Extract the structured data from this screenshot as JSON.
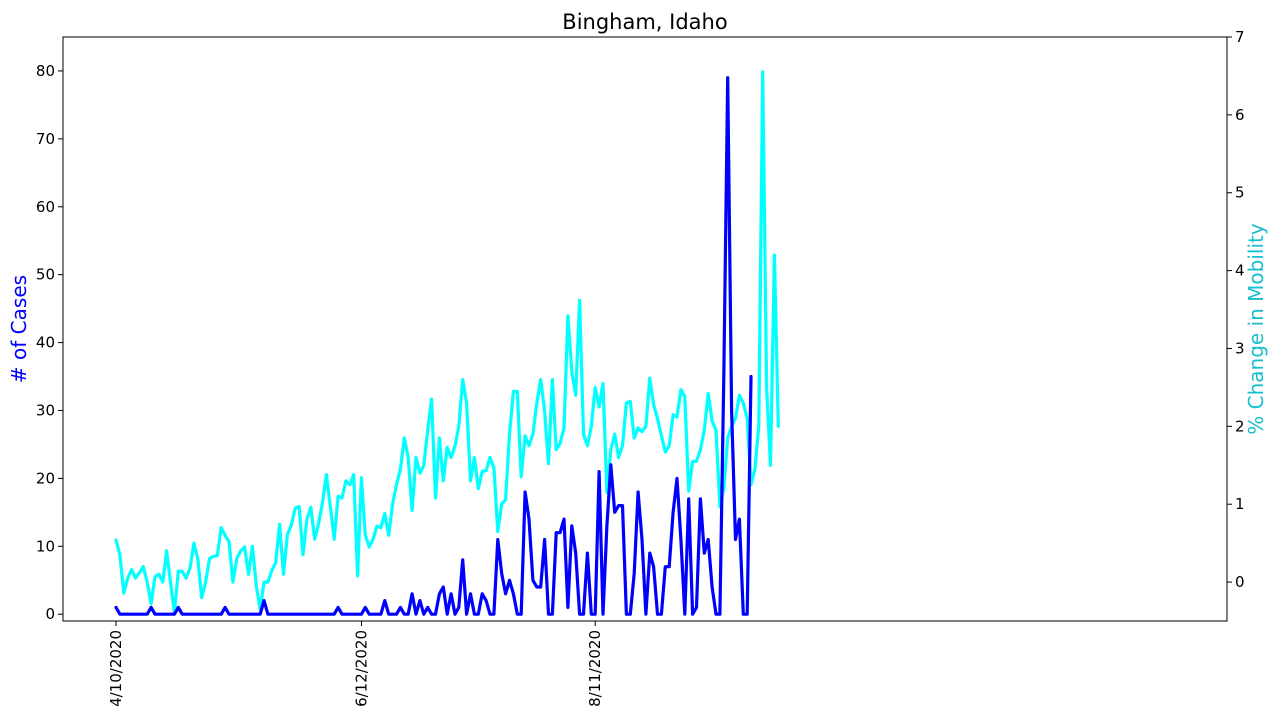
{
  "chart_data": {
    "type": "line",
    "title": "Bingham, Idaho",
    "xlabel": "",
    "x_tick_labels": [
      "4/10/2020",
      "6/12/2020",
      "8/11/2020"
    ],
    "x_tick_day_offsets": [
      0,
      63,
      123
    ],
    "y_left": {
      "label": "# of Cases",
      "color": "#0000ff",
      "range": [
        -1,
        85
      ],
      "ticks": [
        0,
        10,
        20,
        30,
        40,
        50,
        60,
        70,
        80
      ]
    },
    "y_right": {
      "label": "% Change in Mobility",
      "color": "#00ffff",
      "label_color": "#17becf",
      "range": [
        -0.5,
        7
      ],
      "ticks": [
        0,
        1,
        2,
        3,
        4,
        5,
        6,
        7
      ]
    },
    "grid": false,
    "legend": "none",
    "series": [
      {
        "name": "# of Cases",
        "axis": "left",
        "color": "#0000ff",
        "values": [
          1,
          0,
          0,
          0,
          0,
          0,
          0,
          0,
          0,
          1,
          0,
          0,
          0,
          0,
          0,
          0,
          1,
          0,
          0,
          0,
          0,
          0,
          0,
          0,
          0,
          0,
          0,
          0,
          1,
          0,
          0,
          0,
          0,
          0,
          0,
          0,
          0,
          0,
          2,
          0,
          0,
          0,
          0,
          0,
          0,
          0,
          0,
          0,
          0,
          0,
          0,
          0,
          0,
          0,
          0,
          0,
          0,
          1,
          0,
          0,
          0,
          0,
          0,
          0,
          1,
          0,
          0,
          0,
          0,
          2,
          0,
          0,
          0,
          1,
          0,
          0,
          3,
          0,
          2,
          0,
          1,
          0,
          0,
          3,
          4,
          0,
          3,
          0,
          1,
          8,
          0,
          3,
          0,
          0,
          3,
          2,
          0,
          0,
          11,
          6,
          3,
          5,
          3,
          0,
          0,
          18,
          14,
          5,
          4,
          4,
          11,
          0,
          0,
          12,
          12,
          14,
          1,
          13,
          9,
          0,
          0,
          9,
          0,
          0,
          21,
          0,
          13,
          22,
          15,
          16,
          16,
          0,
          0,
          6,
          18,
          11,
          0,
          9,
          7,
          0,
          0,
          7,
          7,
          15,
          20,
          11,
          0,
          17,
          0,
          1,
          17,
          9,
          11,
          4,
          0,
          0,
          35,
          79,
          30,
          11,
          14,
          0,
          0,
          35
        ]
      },
      {
        "name": "% Change in Mobility",
        "axis": "right",
        "color": "#00ffff",
        "values": [
          0.54,
          0.35,
          -0.14,
          0.05,
          0.16,
          0.05,
          0.12,
          0.2,
          0.0,
          -0.28,
          0.07,
          0.1,
          0.0,
          0.4,
          0.0,
          -0.4,
          0.14,
          0.14,
          0.05,
          0.18,
          0.5,
          0.3,
          -0.2,
          0.0,
          0.3,
          0.33,
          0.34,
          0.7,
          0.6,
          0.52,
          0.0,
          0.3,
          0.4,
          0.45,
          0.1,
          0.46,
          -0.05,
          -0.35,
          0.0,
          0.0,
          0.15,
          0.25,
          0.74,
          0.1,
          0.61,
          0.73,
          0.95,
          0.97,
          0.35,
          0.81,
          0.96,
          0.55,
          0.75,
          1.02,
          1.38,
          0.97,
          0.55,
          1.1,
          1.08,
          1.3,
          1.25,
          1.38,
          0.08,
          1.34,
          0.6,
          0.45,
          0.55,
          0.72,
          0.7,
          0.88,
          0.6,
          1.0,
          1.25,
          1.45,
          1.85,
          1.6,
          0.92,
          1.6,
          1.4,
          1.5,
          1.95,
          2.35,
          1.08,
          1.85,
          1.3,
          1.73,
          1.6,
          1.75,
          2.0,
          2.6,
          2.3,
          1.3,
          1.6,
          1.2,
          1.42,
          1.43,
          1.6,
          1.47,
          0.65,
          1.0,
          1.06,
          1.9,
          2.45,
          2.45,
          1.35,
          1.88,
          1.75,
          1.9,
          2.3,
          2.6,
          2.2,
          1.52,
          2.6,
          1.7,
          1.78,
          1.98,
          3.42,
          2.7,
          2.4,
          3.62,
          1.9,
          1.75,
          2.0,
          2.5,
          2.25,
          2.55,
          1.15,
          1.7,
          1.9,
          1.6,
          1.75,
          2.3,
          2.32,
          1.85,
          1.98,
          1.93,
          2.0,
          2.62,
          2.28,
          2.1,
          1.88,
          1.67,
          1.75,
          2.15,
          2.12,
          2.47,
          2.38,
          1.17,
          1.55,
          1.55,
          1.7,
          1.95,
          2.42,
          2.07,
          1.95,
          0.97,
          1.2,
          1.85,
          2.0,
          2.1,
          2.4,
          2.3,
          2.1,
          1.25,
          1.45,
          2.0,
          6.55,
          2.5,
          1.5,
          4.2,
          2.0
        ]
      }
    ]
  }
}
